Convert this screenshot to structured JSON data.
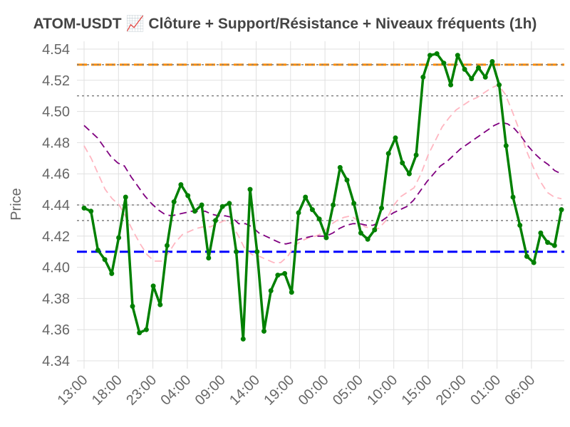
{
  "chart_data": {
    "type": "line",
    "title": "ATOM-USDT 📈 Clôture + Support/Résistance + Niveaux fréquents (1h)",
    "xlabel": "",
    "ylabel": "Price",
    "ylim": [
      4.335,
      4.545
    ],
    "y_ticks": [
      "4.34",
      "4.36",
      "4.38",
      "4.40",
      "4.42",
      "4.44",
      "4.46",
      "4.48",
      "4.50",
      "4.52",
      "4.54"
    ],
    "x_ticks": [
      "13:00",
      "18:00",
      "23:00",
      "04:00",
      "09:00",
      "14:00",
      "19:00",
      "00:00",
      "05:00",
      "10:00",
      "15:00",
      "20:00",
      "01:00",
      "06:00"
    ],
    "grid": true,
    "series": [
      {
        "color": "#008000",
        "style": "solid-markers",
        "values": [
          4.438,
          4.436,
          4.411,
          4.405,
          4.396,
          4.419,
          4.445,
          4.375,
          4.358,
          4.36,
          4.388,
          4.376,
          4.414,
          4.442,
          4.453,
          4.446,
          4.436,
          4.44,
          4.406,
          4.43,
          4.439,
          4.441,
          4.41,
          4.354,
          4.45,
          4.41,
          4.359,
          4.385,
          4.395,
          4.396,
          4.384,
          4.435,
          4.445,
          4.437,
          4.431,
          4.419,
          4.44,
          4.464,
          4.456,
          4.441,
          4.422,
          4.418,
          4.424,
          4.438,
          4.473,
          4.483,
          4.467,
          4.46,
          4.472,
          4.522,
          4.536,
          4.537,
          4.531,
          4.517,
          4.536,
          4.527,
          4.521,
          4.528,
          4.522,
          4.532,
          4.517,
          4.478,
          4.445,
          4.427,
          4.407,
          4.403,
          4.422,
          4.416,
          4.414,
          4.437
        ]
      },
      {
        "color": "#800080",
        "style": "dashed",
        "values": [
          4.491,
          4.487,
          4.483,
          4.477,
          4.471,
          4.467,
          4.465,
          4.458,
          4.452,
          4.446,
          4.441,
          4.437,
          4.434,
          4.433,
          4.434,
          4.435,
          4.436,
          4.436,
          4.436,
          4.434,
          4.433,
          4.433,
          4.432,
          4.428,
          4.428,
          4.426,
          4.422,
          4.42,
          4.418,
          4.416,
          4.415,
          4.416,
          4.418,
          4.419,
          4.42,
          4.42,
          4.42,
          4.422,
          4.425,
          4.427,
          4.428,
          4.428,
          4.427,
          4.427,
          4.429,
          4.432,
          4.435,
          4.437,
          4.439,
          4.443,
          4.449,
          4.455,
          4.46,
          4.465,
          4.468,
          4.472,
          4.476,
          4.479,
          4.482,
          4.485,
          4.488,
          4.491,
          4.493,
          4.492,
          4.489,
          4.484,
          4.478,
          4.473,
          4.469,
          4.466,
          4.462,
          4.46
        ]
      },
      {
        "color": "#ffb6c1",
        "style": "dashed",
        "values": [
          4.478,
          4.47,
          4.46,
          4.45,
          4.444,
          4.44,
          4.432,
          4.423,
          4.415,
          4.408,
          4.404,
          4.404,
          4.409,
          4.416,
          4.421,
          4.423,
          4.425,
          4.426,
          4.426,
          4.428,
          4.43,
          4.428,
          4.42,
          4.411,
          4.408,
          4.407,
          4.405,
          4.403,
          4.403,
          4.407,
          4.414,
          4.417,
          4.419,
          4.42,
          4.422,
          4.427,
          4.43,
          4.432,
          4.433,
          4.43,
          4.426,
          4.425,
          4.425,
          4.43,
          4.439,
          4.445,
          4.448,
          4.451,
          4.46,
          4.472,
          4.481,
          4.49,
          4.496,
          4.501,
          4.504,
          4.507,
          4.509,
          4.512,
          4.515,
          4.517,
          4.511,
          4.5,
          4.488,
          4.475,
          4.464,
          4.455,
          4.448,
          4.445,
          4.444
        ]
      }
    ],
    "horizontal_lines": [
      {
        "value": 4.53,
        "color": "#ff8c00",
        "style": "dashed",
        "width": 3
      },
      {
        "value": 4.53,
        "color": "#808080",
        "style": "dotted",
        "width": 1.5
      },
      {
        "value": 4.51,
        "color": "#808080",
        "style": "dotted",
        "width": 1.5
      },
      {
        "value": 4.44,
        "color": "#808080",
        "style": "dotted",
        "width": 1.5
      },
      {
        "value": 4.43,
        "color": "#808080",
        "style": "dotted",
        "width": 1.5
      },
      {
        "value": 4.41,
        "color": "#0000ff",
        "style": "dashed",
        "width": 3
      }
    ]
  }
}
